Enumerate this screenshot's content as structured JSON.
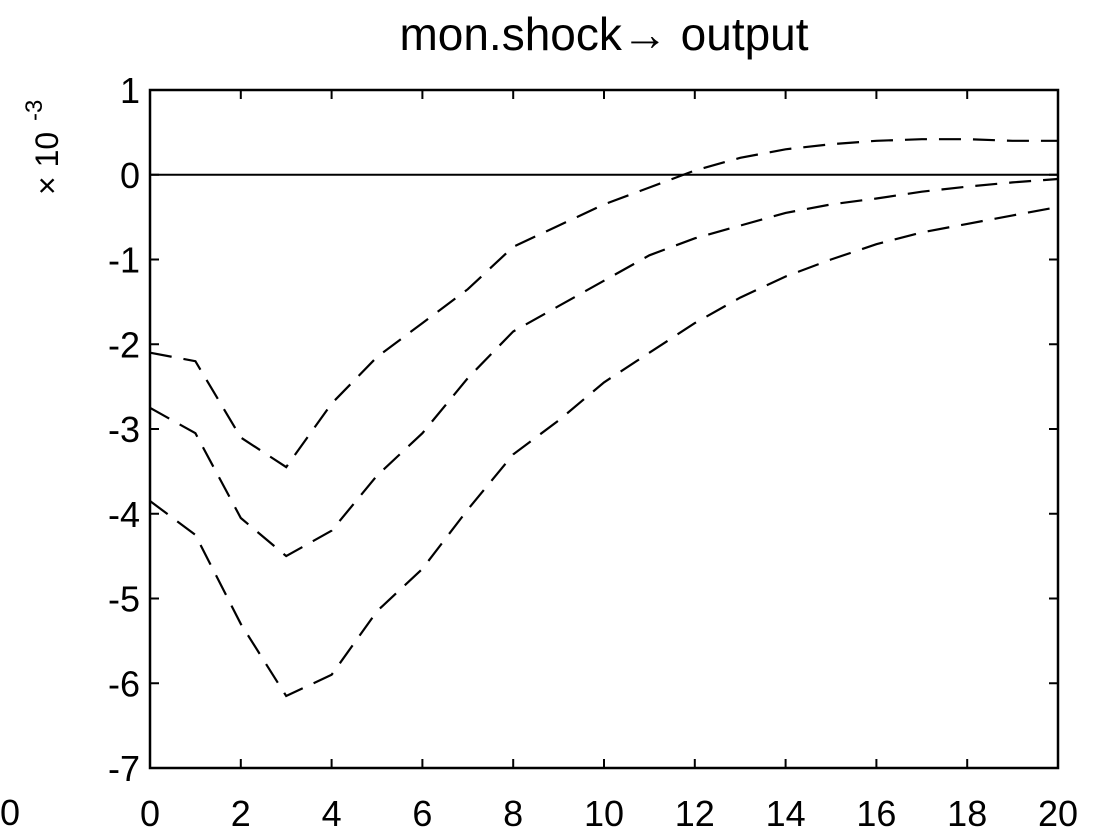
{
  "chart_data": {
    "type": "line",
    "title": "mon.shock→ output",
    "xlabel": "",
    "ylabel": "",
    "y_multiplier_label": "× 10",
    "y_multiplier_exponent": "-3",
    "stray_label": "0",
    "xlim": [
      0,
      20
    ],
    "ylim": [
      -7,
      1
    ],
    "x_ticks": [
      0,
      2,
      4,
      6,
      8,
      10,
      12,
      14,
      16,
      18,
      20
    ],
    "y_ticks": [
      1,
      0,
      -1,
      -2,
      -3,
      -4,
      -5,
      -6,
      -7
    ],
    "x_tick_labels": [
      "0",
      "2",
      "4",
      "6",
      "8",
      "10",
      "12",
      "14",
      "16",
      "18",
      "20"
    ],
    "y_tick_labels": [
      "1",
      "0",
      "-1",
      "-2",
      "-3",
      "-4",
      "-5",
      "-6",
      "-7"
    ],
    "zero_line": 0,
    "grid": false,
    "x": [
      0,
      1,
      2,
      3,
      4,
      5,
      6,
      7,
      8,
      9,
      10,
      11,
      12,
      13,
      14,
      15,
      16,
      17,
      18,
      19,
      20
    ],
    "series": [
      {
        "role": "upper",
        "style": "dashed",
        "values": [
          -2.1,
          -2.2,
          -3.1,
          -3.45,
          -2.7,
          -2.15,
          -1.75,
          -1.35,
          -0.85,
          -0.6,
          -0.35,
          -0.15,
          0.05,
          0.2,
          0.3,
          0.36,
          0.4,
          0.42,
          0.42,
          0.4,
          0.4
        ]
      },
      {
        "role": "median",
        "style": "dashed",
        "values": [
          -2.75,
          -3.05,
          -4.05,
          -4.5,
          -4.2,
          -3.55,
          -3.05,
          -2.4,
          -1.85,
          -1.55,
          -1.25,
          -0.95,
          -0.75,
          -0.6,
          -0.45,
          -0.35,
          -0.28,
          -0.2,
          -0.14,
          -0.09,
          -0.05
        ]
      },
      {
        "role": "lower",
        "style": "dashed",
        "values": [
          -3.85,
          -4.25,
          -5.3,
          -6.15,
          -5.9,
          -5.15,
          -4.65,
          -3.95,
          -3.3,
          -2.9,
          -2.45,
          -2.1,
          -1.75,
          -1.45,
          -1.2,
          -1.0,
          -0.82,
          -0.68,
          -0.58,
          -0.48,
          -0.38
        ]
      }
    ]
  }
}
